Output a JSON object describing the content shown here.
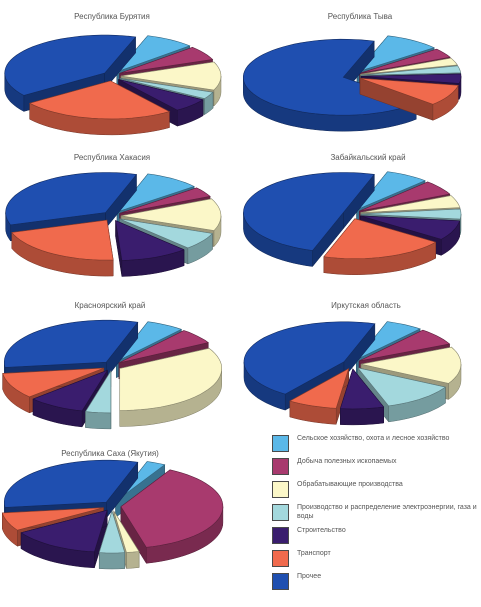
{
  "chart_data": {
    "type": "pie",
    "legend_position": "bottom-right",
    "category_colors": [
      "#5bb8e8",
      "#a83a6e",
      "#fbf7c8",
      "#a3d8dd",
      "#3a1d6e",
      "#f06a4d",
      "#1f4fb0"
    ],
    "categories": [
      "Сельское хозяйство, охота и лесное хозяйство",
      "Добыча полезных ископаемых",
      "Обрабатывающие производства",
      "Производство и распределение электроэнергии, газа и воды",
      "Строительство",
      "Транспорт",
      "Прочее"
    ],
    "charts": [
      {
        "title": "Республика Бурятия",
        "values": [
          8,
          6,
          12,
          3,
          6,
          25,
          40
        ]
      },
      {
        "title": "Республика Тыва",
        "values": [
          9,
          4,
          3,
          3,
          4,
          9,
          68
        ]
      },
      {
        "title": "Республика Хакасия",
        "values": [
          9,
          4,
          13,
          7,
          11,
          21,
          35
        ]
      },
      {
        "title": "Забайкальский край",
        "values": [
          7,
          6,
          5,
          4,
          8,
          20,
          50
        ]
      },
      {
        "title": "Красноярский край",
        "values": [
          6,
          6,
          33,
          4,
          9,
          10,
          32
        ]
      },
      {
        "title": "Иркутская область",
        "values": [
          6,
          7,
          15,
          12,
          7,
          8,
          45
        ]
      },
      {
        "title": "Республика Саха (Якутия)",
        "values": [
          3,
          38,
          2,
          4,
          14,
          7,
          32
        ]
      }
    ]
  }
}
